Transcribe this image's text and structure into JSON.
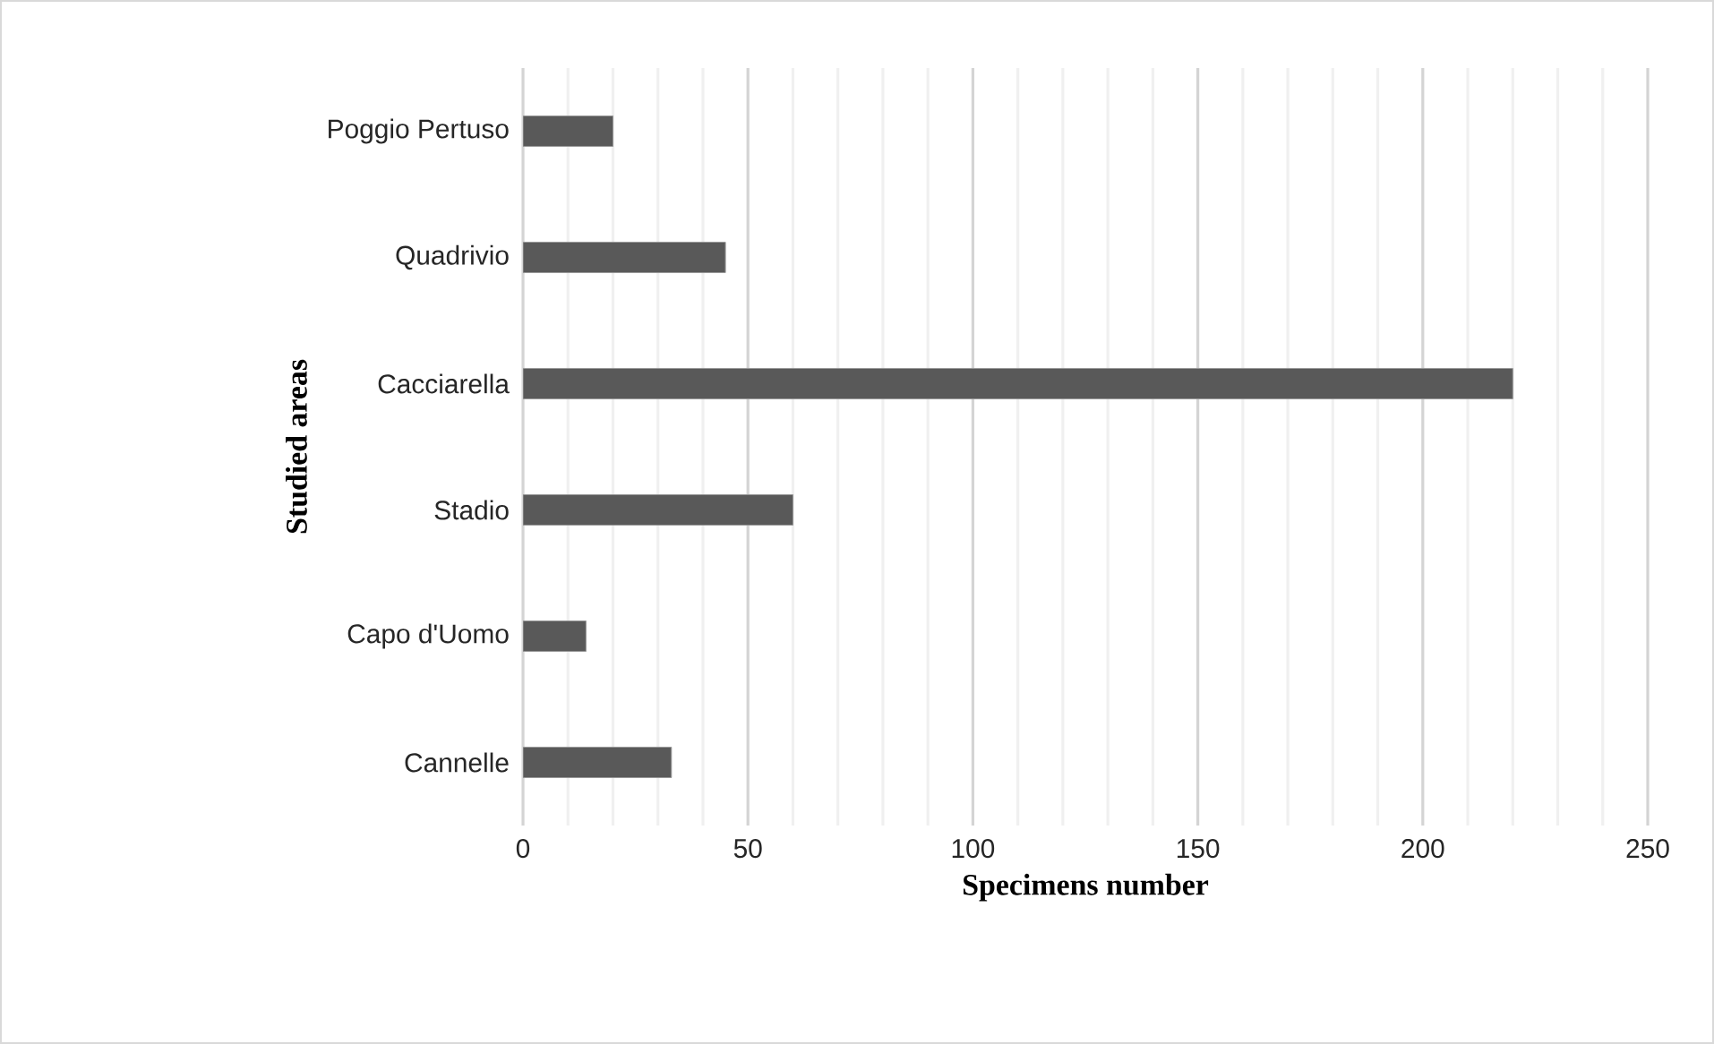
{
  "chart_data": {
    "type": "bar",
    "orientation": "horizontal",
    "xlabel": "Specimens number",
    "ylabel": "Studied areas",
    "categories": [
      "Poggio Pertuso",
      "Quadrivio",
      "Cacciarella",
      "Stadio",
      "Capo d'Uomo",
      "Cannelle"
    ],
    "values": [
      20,
      45,
      220,
      60,
      14,
      33
    ],
    "color": "#595959",
    "xlim": [
      0,
      250
    ],
    "xticks": [
      0,
      {
        "value": 10,
        "label": null
      },
      {
        "value": 20,
        "label": null
      },
      {
        "value": 30,
        "label": null
      },
      {
        "value": 40,
        "label": null
      },
      50,
      {
        "value": 60,
        "label": null
      },
      {
        "value": 70,
        "label": null
      },
      {
        "value": 80,
        "label": null
      },
      {
        "value": 90,
        "label": null
      },
      100,
      {
        "value": 110,
        "label": null
      },
      {
        "value": 120,
        "label": null
      },
      {
        "value": 130,
        "label": null
      },
      {
        "value": 140,
        "label": null
      },
      150,
      {
        "value": 160,
        "label": null
      },
      {
        "value": 170,
        "label": null
      },
      {
        "value": 180,
        "label": null
      },
      {
        "value": 190,
        "label": null
      },
      200,
      {
        "value": 210,
        "label": null
      },
      {
        "value": 220,
        "label": null
      },
      {
        "value": 230,
        "label": null
      },
      {
        "value": 240,
        "label": null
      },
      250
    ],
    "grid": "x"
  }
}
